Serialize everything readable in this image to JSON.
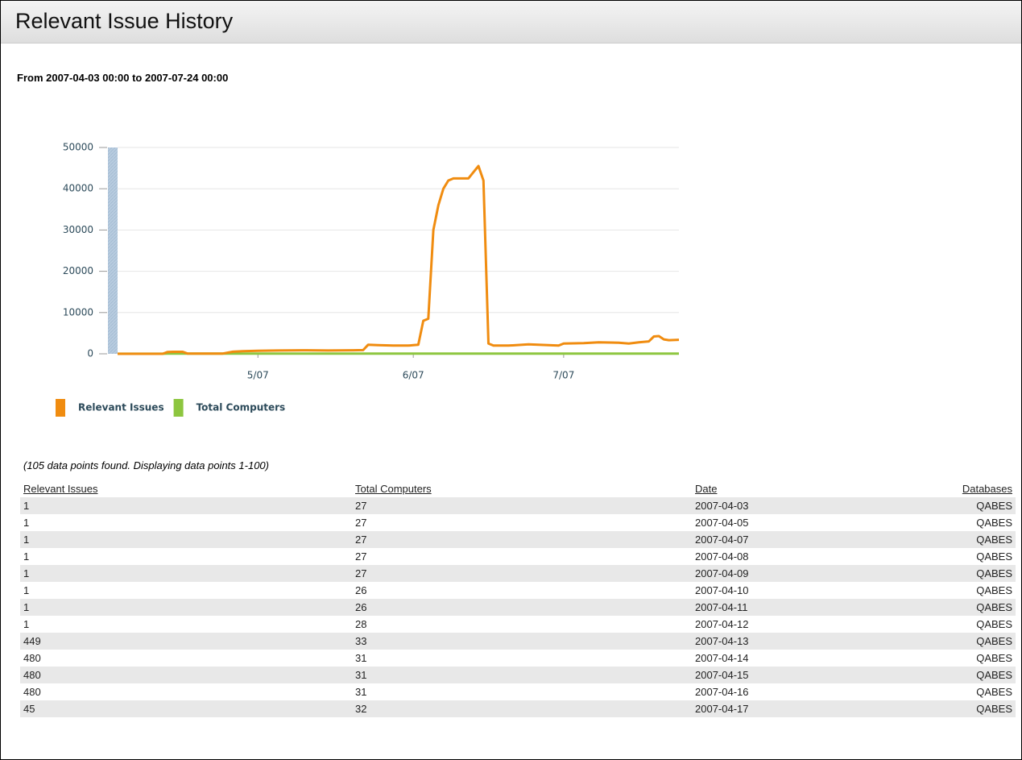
{
  "header": {
    "title": "Relevant Issue History"
  },
  "subtitle": "From 2007-04-03 00:00 to 2007-07-24 00:00",
  "chart_data": {
    "type": "line",
    "x": [
      "2007-04-03",
      "2007-04-05",
      "2007-04-07",
      "2007-04-08",
      "2007-04-09",
      "2007-04-10",
      "2007-04-11",
      "2007-04-12",
      "2007-04-13",
      "2007-04-14",
      "2007-04-15",
      "2007-04-16",
      "2007-04-17",
      "2007-04-20",
      "2007-04-24",
      "2007-04-26",
      "2007-04-28",
      "2007-05-01",
      "2007-05-05",
      "2007-05-10",
      "2007-05-15",
      "2007-05-20",
      "2007-05-22",
      "2007-05-23",
      "2007-05-25",
      "2007-05-28",
      "2007-05-31",
      "2007-06-01",
      "2007-06-02",
      "2007-06-03",
      "2007-06-04",
      "2007-06-05",
      "2007-06-06",
      "2007-06-07",
      "2007-06-08",
      "2007-06-09",
      "2007-06-12",
      "2007-06-13",
      "2007-06-14",
      "2007-06-15",
      "2007-06-16",
      "2007-06-17",
      "2007-06-20",
      "2007-06-24",
      "2007-06-28",
      "2007-06-30",
      "2007-07-01",
      "2007-07-05",
      "2007-07-08",
      "2007-07-12",
      "2007-07-14",
      "2007-07-16",
      "2007-07-18",
      "2007-07-19",
      "2007-07-20",
      "2007-07-21",
      "2007-07-22",
      "2007-07-24"
    ],
    "series": [
      {
        "name": "Relevant Issues",
        "color": "#f08c10",
        "values": [
          1,
          1,
          1,
          1,
          1,
          1,
          1,
          1,
          449,
          480,
          480,
          480,
          45,
          40,
          60,
          500,
          650,
          750,
          800,
          850,
          800,
          850,
          900,
          2200,
          2100,
          2000,
          2000,
          2100,
          2200,
          8000,
          8500,
          30000,
          36000,
          40000,
          42000,
          42500,
          42500,
          44000,
          45500,
          42000,
          2500,
          2000,
          2000,
          2300,
          2100,
          2000,
          2500,
          2600,
          2800,
          2700,
          2500,
          2800,
          3000,
          4200,
          4300,
          3500,
          3300,
          3400
        ]
      },
      {
        "name": "Total Computers",
        "color": "#8dc63f",
        "values": [
          27,
          27,
          27,
          27,
          27,
          26,
          26,
          28,
          33,
          31,
          31,
          31,
          32,
          30,
          30,
          30,
          30,
          30,
          30,
          30,
          30,
          30,
          30,
          30,
          30,
          30,
          30,
          30,
          30,
          30,
          30,
          30,
          30,
          30,
          30,
          30,
          30,
          30,
          30,
          30,
          30,
          30,
          30,
          30,
          30,
          30,
          30,
          30,
          30,
          30,
          30,
          30,
          30,
          30,
          30,
          30,
          30,
          30
        ]
      }
    ],
    "xlim": [
      "2007-04-03",
      "2007-07-24"
    ],
    "xticks": [
      {
        "value": "2007-05-01",
        "label": "5/07"
      },
      {
        "value": "2007-06-01",
        "label": "6/07"
      },
      {
        "value": "2007-07-01",
        "label": "7/07"
      }
    ],
    "ylim": [
      0,
      50000
    ],
    "yticks": [
      0,
      10000,
      20000,
      30000,
      40000,
      50000
    ],
    "grid": true
  },
  "table": {
    "note": "(105 data points found. Displaying data points 1-100)",
    "columns": [
      "Relevant Issues",
      "Total Computers",
      "Date",
      "Databases"
    ],
    "rows": [
      [
        "1",
        "27",
        "2007-04-03",
        "QABES"
      ],
      [
        "1",
        "27",
        "2007-04-05",
        "QABES"
      ],
      [
        "1",
        "27",
        "2007-04-07",
        "QABES"
      ],
      [
        "1",
        "27",
        "2007-04-08",
        "QABES"
      ],
      [
        "1",
        "27",
        "2007-04-09",
        "QABES"
      ],
      [
        "1",
        "26",
        "2007-04-10",
        "QABES"
      ],
      [
        "1",
        "26",
        "2007-04-11",
        "QABES"
      ],
      [
        "1",
        "28",
        "2007-04-12",
        "QABES"
      ],
      [
        "449",
        "33",
        "2007-04-13",
        "QABES"
      ],
      [
        "480",
        "31",
        "2007-04-14",
        "QABES"
      ],
      [
        "480",
        "31",
        "2007-04-15",
        "QABES"
      ],
      [
        "480",
        "31",
        "2007-04-16",
        "QABES"
      ],
      [
        "45",
        "32",
        "2007-04-17",
        "QABES"
      ]
    ]
  }
}
